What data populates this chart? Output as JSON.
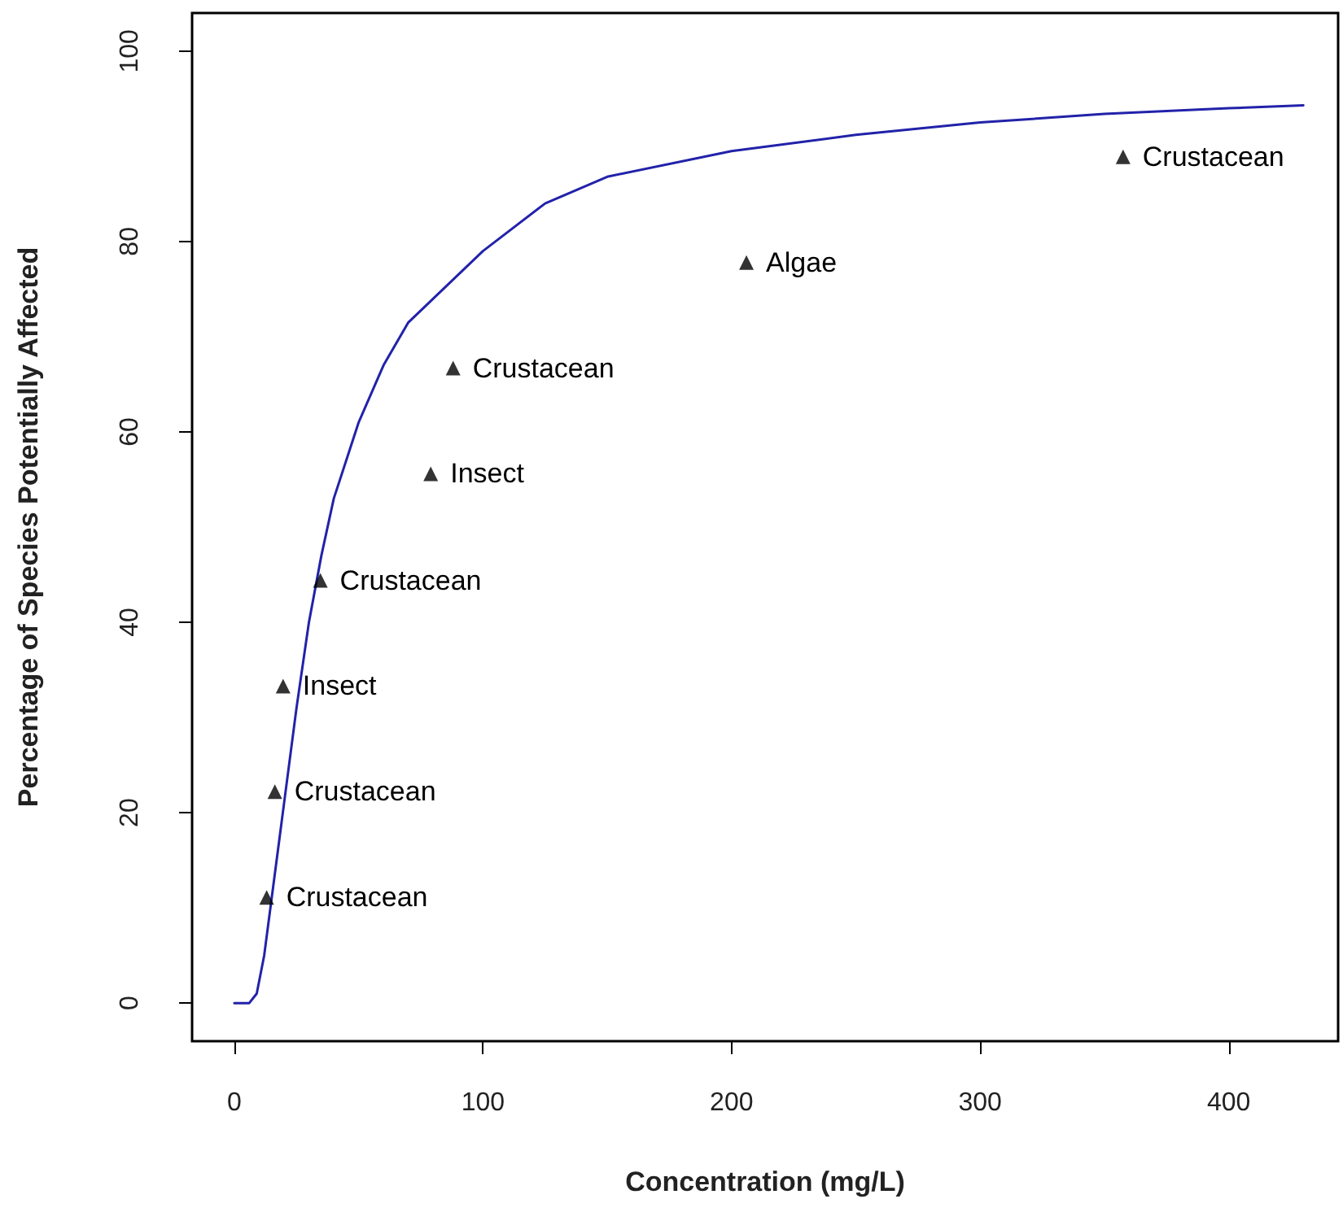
{
  "chart_data": {
    "type": "scatter",
    "xlabel": "Concentration (mg/L)",
    "ylabel": "Percentage of Species Potentially Affected",
    "xlim": [
      -17,
      444
    ],
    "ylim": [
      -4,
      104
    ],
    "xticks": [
      0,
      100,
      200,
      300,
      400
    ],
    "yticks": [
      0,
      20,
      40,
      60,
      80,
      100
    ],
    "grid": false,
    "series": [
      {
        "type": "line",
        "color": "#2222aa",
        "marker": "none",
        "line_style": "solid",
        "x": [
          0,
          6,
          9,
          12,
          15,
          18,
          20,
          25,
          30,
          35,
          40,
          50,
          60,
          70,
          80,
          100,
          125,
          150,
          200,
          250,
          300,
          350,
          400,
          430
        ],
        "values": [
          0,
          0,
          1,
          5,
          11,
          17,
          21,
          31,
          40,
          47,
          53,
          61,
          67,
          71.5,
          74,
          79,
          84,
          86.8,
          89.5,
          91.2,
          92.5,
          93.4,
          94,
          94.3
        ]
      },
      {
        "color": "#000000",
        "marker": "triangle",
        "x": [
          13,
          16.3,
          19.6,
          34.6,
          79,
          88,
          206,
          357.5
        ],
        "values": [
          11.1,
          22.2,
          33.3,
          44.4,
          55.6,
          66.7,
          77.8,
          88.9
        ]
      }
    ],
    "annotations": [
      {
        "text": "Crustacean",
        "x": 13,
        "y": 11.1
      },
      {
        "text": "Crustacean",
        "x": 16.3,
        "y": 22.2
      },
      {
        "text": "Insect",
        "x": 19.6,
        "y": 33.3
      },
      {
        "text": "Crustacean",
        "x": 34.6,
        "y": 44.4
      },
      {
        "text": "Insect",
        "x": 79,
        "y": 55.6
      },
      {
        "text": "Crustacean",
        "x": 88,
        "y": 66.7
      },
      {
        "text": "Algae",
        "x": 206,
        "y": 77.8
      },
      {
        "text": "Crustacean",
        "x": 357.5,
        "y": 88.9
      }
    ]
  }
}
